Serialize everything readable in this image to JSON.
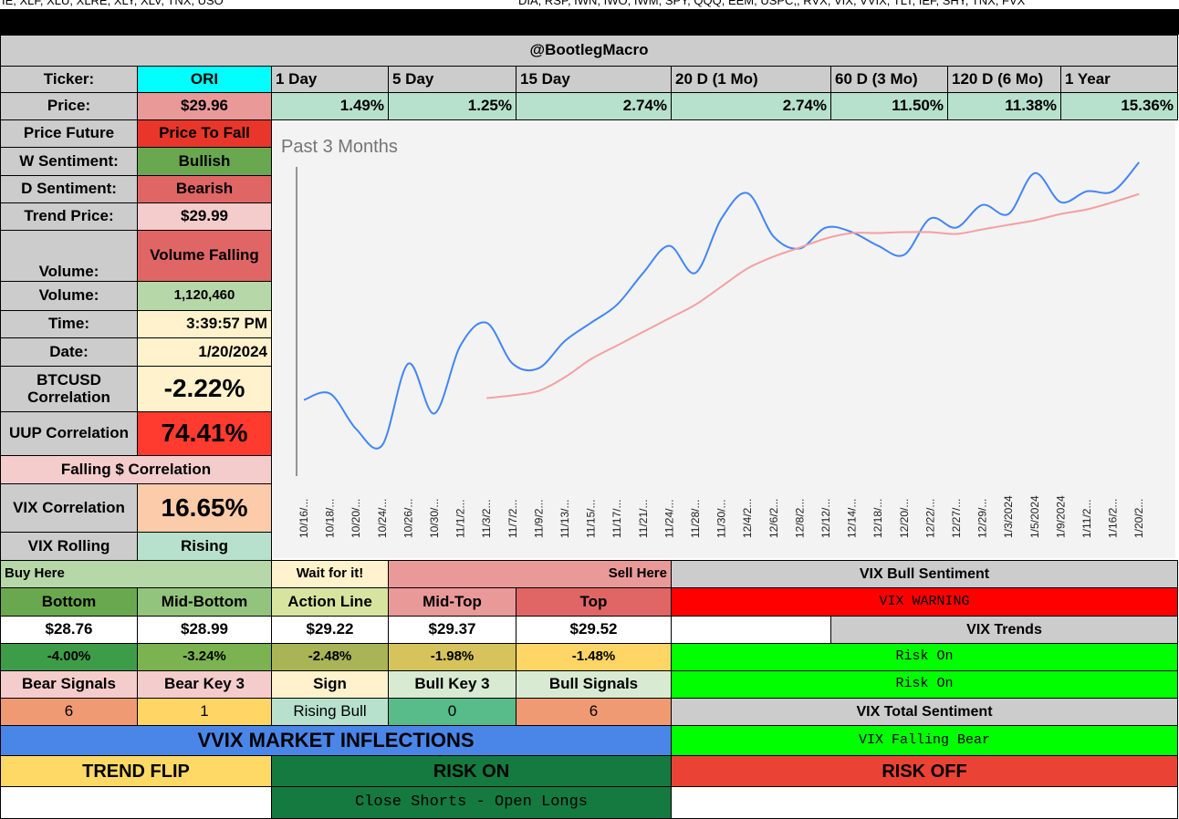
{
  "top_strip": {
    "left": "IE, XLF, XLU, XLRE, XLY, XLV, TNX, USO",
    "right": "DIA, RSP, IWN, IWO, IWM, SPY, QQQ, EEM, USPC,, RVX, VIX, VVIX, TLT, IEF, SHY, TNX, FVX"
  },
  "sheet": {
    "title": "@BootlegMacro",
    "ticker_label": "Ticker:",
    "ticker": "ORI",
    "periods": [
      "1 Day",
      "5 Day",
      "15 Day",
      "20 D (1 Mo)",
      "60 D (3 Mo)",
      "120 D (6 Mo)",
      "1 Year"
    ],
    "price_label": "Price:",
    "price": "$29.96",
    "changes": [
      "1.49%",
      "1.25%",
      "2.74%",
      "2.74%",
      "11.50%",
      "11.38%",
      "15.36%"
    ],
    "metrics": [
      {
        "label": "Price Future",
        "value": "Price To Fall"
      },
      {
        "label": "W Sentiment:",
        "value": "Bullish"
      },
      {
        "label": "D Sentiment:",
        "value": "Bearish"
      },
      {
        "label": "Trend Price:",
        "value": "$29.99"
      },
      {
        "label": "Volume:",
        "value": "Volume Falling"
      },
      {
        "label": "Volume:",
        "value": "1,120,460"
      },
      {
        "label": "Time:",
        "value": "3:39:57 PM"
      },
      {
        "label": "Date:",
        "value": "1/20/2024"
      },
      {
        "label": "BTCUSD Correlation",
        "value": "-2.22%"
      },
      {
        "label": "UUP Correlation",
        "value": "74.41%"
      },
      {
        "label": "Falling $ Correlation"
      },
      {
        "label": "VIX Correlation",
        "value": "16.65%"
      },
      {
        "label": "VIX Rolling",
        "value": "Rising"
      }
    ]
  },
  "zones": {
    "buy": "Buy Here",
    "wait": "Wait for it!",
    "sell": "Sell Here",
    "levels": [
      {
        "name": "Bottom",
        "price": "$28.76",
        "change": "-4.00%"
      },
      {
        "name": "Mid-Bottom",
        "price": "$28.99",
        "change": "-3.24%"
      },
      {
        "name": "Action Line",
        "price": "$29.22",
        "change": "-2.48%"
      },
      {
        "name": "Mid-Top",
        "price": "$29.37",
        "change": "-1.98%"
      },
      {
        "name": "Top",
        "price": "$29.52",
        "change": "-1.48%"
      }
    ],
    "signal_headers": [
      "Bear Signals",
      "Bear Key 3",
      "Sign",
      "Bull Key 3",
      "Bull Signals"
    ],
    "signal_values": [
      6,
      1,
      "Rising Bull",
      0,
      6
    ]
  },
  "inflections": {
    "title": "VVIX MARKET INFLECTIONS",
    "trend_flip": "TREND FLIP",
    "risk_on": "RISK ON",
    "risk_off": "RISK OFF",
    "action": "Close Shorts - Open Longs"
  },
  "vix": {
    "bull_sentiment": "VIX Bull Sentiment",
    "warning": "VIX WARNING",
    "trends": "VIX Trends",
    "trend_values": [
      "Risk On",
      "Risk On"
    ],
    "total_sentiment": "VIX Total Sentiment",
    "total": "VIX Falling Bear"
  },
  "chart_data": {
    "type": "line",
    "title": "Past 3 Months",
    "categories": [
      "10/16/...",
      "10/18/...",
      "10/20/...",
      "10/24/...",
      "10/26/...",
      "10/30/...",
      "11/1/2...",
      "11/3/2...",
      "11/7/2...",
      "11/9/2...",
      "11/13/...",
      "11/15/...",
      "11/17/...",
      "11/21/...",
      "11/24/...",
      "11/28/...",
      "11/30/...",
      "12/4/2...",
      "12/6/2...",
      "12/8/2...",
      "12/12/...",
      "12/14/...",
      "12/18/...",
      "12/20/...",
      "12/22/...",
      "12/27/...",
      "12/29/...",
      "1/3/2024",
      "1/5/2024",
      "1/9/2024",
      "1/11/2...",
      "1/16/2...",
      "1/20/2..."
    ],
    "series": [
      {
        "color": "#4285f4",
        "values": [
          27.34,
          27.41,
          27.02,
          26.84,
          27.74,
          27.19,
          27.94,
          28.19,
          27.74,
          27.69,
          27.99,
          28.19,
          28.39,
          28.74,
          29.04,
          28.74,
          29.34,
          29.62,
          29.14,
          29.01,
          29.24,
          29.19,
          29.04,
          28.94,
          29.34,
          29.24,
          29.49,
          29.39,
          29.84,
          29.52,
          29.64,
          29.64,
          29.96
        ]
      },
      {
        "color": "#f4a0a0",
        "values": [
          null,
          null,
          null,
          null,
          null,
          null,
          null,
          27.36,
          27.39,
          27.44,
          27.59,
          27.79,
          27.94,
          28.09,
          28.24,
          28.39,
          28.59,
          28.79,
          28.92,
          29.02,
          29.12,
          29.18,
          29.18,
          29.19,
          29.19,
          29.17,
          29.22,
          29.27,
          29.32,
          29.39,
          29.44,
          29.52,
          29.61
        ]
      }
    ],
    "ylim": [
      26.4,
      30.06
    ]
  }
}
